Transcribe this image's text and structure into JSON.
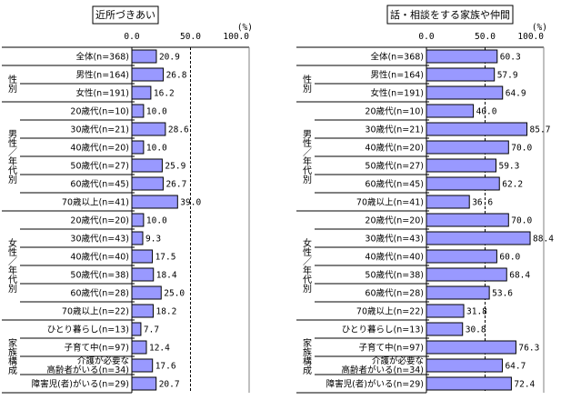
{
  "row_labels": [
    "全体(n=368)",
    "男性(n=164)",
    "女性(n=191)",
    "20歳代(n=10)",
    "30歳代(n=21)",
    "40歳代(n=20)",
    "50歳代(n=27)",
    "60歳代(n=45)",
    "70歳以上(n=41)",
    "20歳代(n=20)",
    "30歳代(n=43)",
    "40歳代(n=40)",
    "50歳代(n=38)",
    "60歳代(n=28)",
    "70歳以上(n=22)",
    "ひとり暮らし(n=13)",
    "子育て中(n=97)",
    "介護が必要な\n高齢者がいる(n=34)",
    "障害児(者)がいる(n=29)"
  ],
  "groups": [
    {
      "label": "性別",
      "start": 1,
      "end": 2
    },
    {
      "label": "男性／年代別",
      "start": 3,
      "end": 8
    },
    {
      "label": "女性／年代別",
      "start": 9,
      "end": 14
    },
    {
      "label": "家族構成",
      "start": 15,
      "end": 18
    }
  ],
  "colors": {
    "bar": "#9999ff",
    "frame": "#808080"
  },
  "chart_data": [
    {
      "type": "bar",
      "orientation": "horizontal",
      "title": "近所づきあい",
      "unit": "(%)",
      "xlim": [
        0,
        100
      ],
      "ticks": [
        "0.0",
        "50.0",
        "100.0"
      ],
      "reference_line": 50,
      "values": [
        20.9,
        26.8,
        16.2,
        10.0,
        28.6,
        10.0,
        25.9,
        26.7,
        39.0,
        10.0,
        9.3,
        17.5,
        18.4,
        25.0,
        18.2,
        7.7,
        12.4,
        17.6,
        20.7
      ]
    },
    {
      "type": "bar",
      "orientation": "horizontal",
      "title": "話・相談をする家族や仲間",
      "unit": "(%)",
      "xlim": [
        0,
        100
      ],
      "ticks": [
        "0.0",
        "50.0",
        "100.0"
      ],
      "reference_line": 50,
      "values": [
        60.3,
        57.9,
        64.9,
        40.0,
        85.7,
        70.0,
        59.3,
        62.2,
        36.6,
        70.0,
        88.4,
        60.0,
        68.4,
        53.6,
        31.8,
        30.8,
        76.3,
        64.7,
        72.4
      ]
    }
  ]
}
